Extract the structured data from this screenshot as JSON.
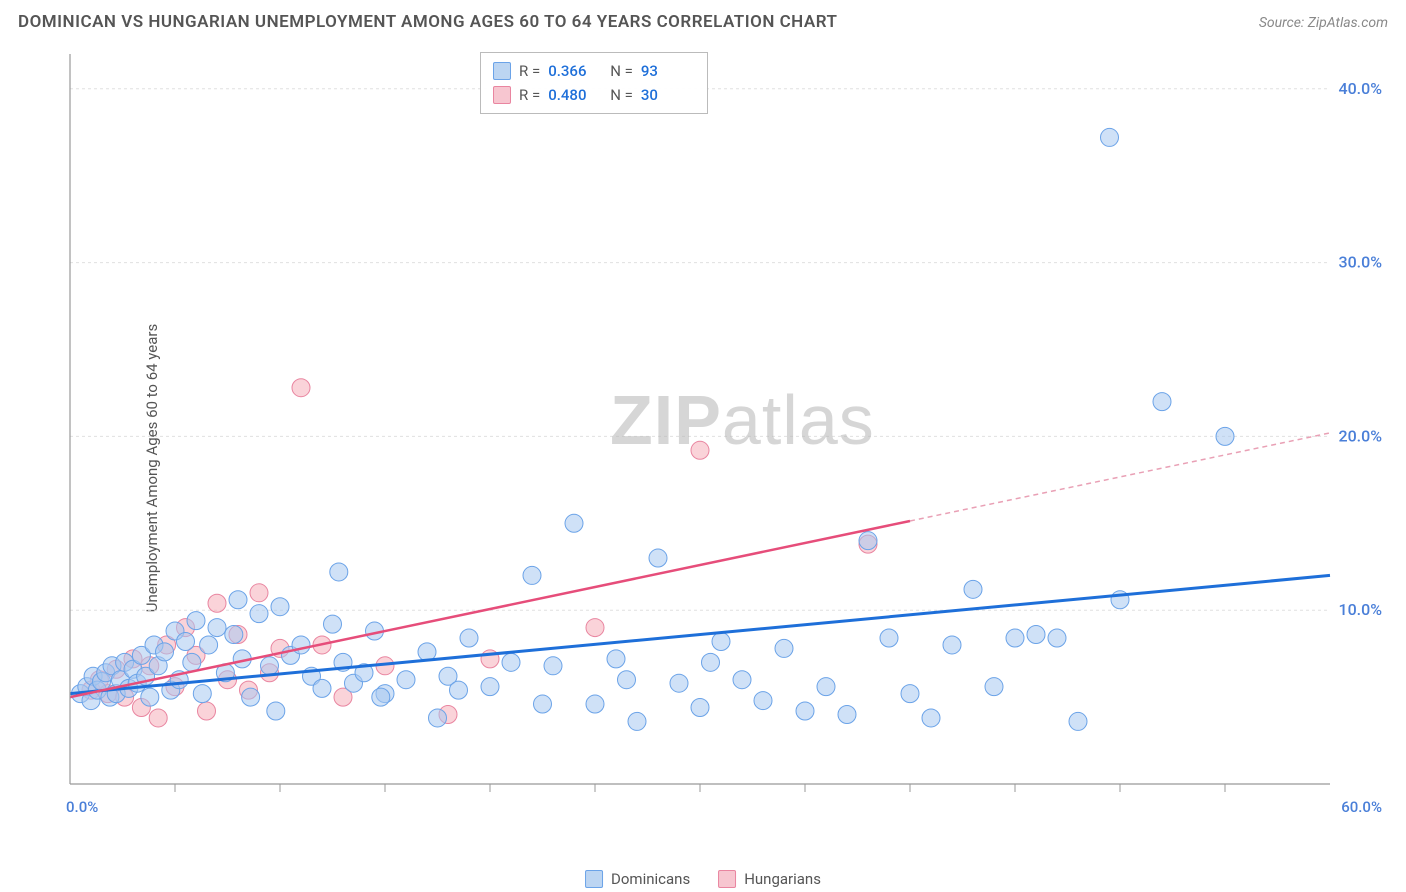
{
  "header": {
    "title": "DOMINICAN VS HUNGARIAN UNEMPLOYMENT AMONG AGES 60 TO 64 YEARS CORRELATION CHART",
    "source_label": "Source: ZipAtlas.com"
  },
  "ylabel": "Unemployment Among Ages 60 to 64 years",
  "watermark": {
    "part1": "ZIP",
    "part2": "atlas"
  },
  "chart": {
    "type": "scatter",
    "background_color": "#ffffff",
    "grid_color": "#e0e0e0",
    "axis_color": "#999999",
    "xlim": [
      0,
      60
    ],
    "ylim": [
      0,
      42
    ],
    "xticks": [
      0,
      60
    ],
    "xtick_labels": [
      "0.0%",
      "60.0%"
    ],
    "yticks": [
      10,
      20,
      30,
      40
    ],
    "ytick_labels": [
      "10.0%",
      "20.0%",
      "30.0%",
      "40.0%"
    ],
    "marker_radius": 9,
    "series": [
      {
        "name": "Dominicans",
        "fill": "#a8c8f0",
        "stroke": "#6ba3e8",
        "reg_color": "#1e6fd9",
        "reg_width": 3,
        "R": "0.366",
        "N": "93",
        "regression": {
          "x1": 0,
          "y1": 5.2,
          "x2": 60,
          "y2": 12.0,
          "x_solid_end": 60
        },
        "points": [
          [
            0.5,
            5.2
          ],
          [
            0.8,
            5.6
          ],
          [
            1.0,
            4.8
          ],
          [
            1.1,
            6.2
          ],
          [
            1.3,
            5.4
          ],
          [
            1.5,
            5.9
          ],
          [
            1.7,
            6.4
          ],
          [
            1.9,
            5.0
          ],
          [
            2.0,
            6.8
          ],
          [
            2.2,
            5.2
          ],
          [
            2.4,
            6.0
          ],
          [
            2.6,
            7.0
          ],
          [
            2.8,
            5.5
          ],
          [
            3.0,
            6.6
          ],
          [
            3.2,
            5.8
          ],
          [
            3.4,
            7.4
          ],
          [
            3.6,
            6.2
          ],
          [
            3.8,
            5.0
          ],
          [
            4.0,
            8.0
          ],
          [
            4.2,
            6.8
          ],
          [
            4.5,
            7.6
          ],
          [
            4.8,
            5.4
          ],
          [
            5.0,
            8.8
          ],
          [
            5.2,
            6.0
          ],
          [
            5.5,
            8.2
          ],
          [
            5.8,
            7.0
          ],
          [
            6.0,
            9.4
          ],
          [
            6.3,
            5.2
          ],
          [
            6.6,
            8.0
          ],
          [
            7.0,
            9.0
          ],
          [
            7.4,
            6.4
          ],
          [
            7.8,
            8.6
          ],
          [
            8.2,
            7.2
          ],
          [
            8.6,
            5.0
          ],
          [
            9.0,
            9.8
          ],
          [
            9.5,
            6.8
          ],
          [
            10.0,
            10.2
          ],
          [
            10.5,
            7.4
          ],
          [
            11.0,
            8.0
          ],
          [
            11.5,
            6.2
          ],
          [
            12.0,
            5.5
          ],
          [
            12.5,
            9.2
          ],
          [
            13.0,
            7.0
          ],
          [
            13.5,
            5.8
          ],
          [
            14.0,
            6.4
          ],
          [
            14.5,
            8.8
          ],
          [
            15.0,
            5.2
          ],
          [
            16.0,
            6.0
          ],
          [
            17.0,
            7.6
          ],
          [
            17.5,
            3.8
          ],
          [
            18.0,
            6.2
          ],
          [
            19.0,
            8.4
          ],
          [
            20.0,
            5.6
          ],
          [
            21.0,
            7.0
          ],
          [
            22.0,
            12.0
          ],
          [
            23.0,
            6.8
          ],
          [
            24.0,
            15.0
          ],
          [
            25.0,
            4.6
          ],
          [
            26.0,
            7.2
          ],
          [
            27.0,
            3.6
          ],
          [
            28.0,
            13.0
          ],
          [
            29.0,
            5.8
          ],
          [
            30.0,
            4.4
          ],
          [
            31.0,
            8.2
          ],
          [
            32.0,
            6.0
          ],
          [
            33.0,
            4.8
          ],
          [
            34.0,
            7.8
          ],
          [
            35.0,
            4.2
          ],
          [
            36.0,
            5.6
          ],
          [
            37.0,
            4.0
          ],
          [
            38.0,
            14.0
          ],
          [
            39.0,
            8.4
          ],
          [
            40.0,
            5.2
          ],
          [
            41.0,
            3.8
          ],
          [
            42.0,
            8.0
          ],
          [
            43.0,
            11.2
          ],
          [
            44.0,
            5.6
          ],
          [
            45.0,
            8.4
          ],
          [
            46.0,
            8.6
          ],
          [
            47.0,
            8.4
          ],
          [
            48.0,
            3.6
          ],
          [
            49.5,
            37.2
          ],
          [
            50.0,
            10.6
          ],
          [
            52.0,
            22.0
          ],
          [
            55.0,
            20.0
          ],
          [
            14.8,
            5.0
          ],
          [
            18.5,
            5.4
          ],
          [
            22.5,
            4.6
          ],
          [
            26.5,
            6.0
          ],
          [
            30.5,
            7.0
          ],
          [
            8.0,
            10.6
          ],
          [
            12.8,
            12.2
          ],
          [
            9.8,
            4.2
          ]
        ]
      },
      {
        "name": "Hungarians",
        "fill": "#f5aeb9",
        "stroke": "#e985a0",
        "reg_color": "#e64d7a",
        "reg_width": 2.5,
        "R": "0.480",
        "N": "30",
        "regression": {
          "x1": 0,
          "y1": 5.0,
          "x2": 60,
          "y2": 20.2,
          "x_solid_end": 40
        },
        "points": [
          [
            1.0,
            5.4
          ],
          [
            1.4,
            6.0
          ],
          [
            1.8,
            5.2
          ],
          [
            2.2,
            6.6
          ],
          [
            2.6,
            5.0
          ],
          [
            3.0,
            7.2
          ],
          [
            3.4,
            4.4
          ],
          [
            3.8,
            6.8
          ],
          [
            4.2,
            3.8
          ],
          [
            4.6,
            8.0
          ],
          [
            5.0,
            5.6
          ],
          [
            5.5,
            9.0
          ],
          [
            6.0,
            7.4
          ],
          [
            6.5,
            4.2
          ],
          [
            7.0,
            10.4
          ],
          [
            7.5,
            6.0
          ],
          [
            8.0,
            8.6
          ],
          [
            8.5,
            5.4
          ],
          [
            9.0,
            11.0
          ],
          [
            9.5,
            6.4
          ],
          [
            10.0,
            7.8
          ],
          [
            11.0,
            22.8
          ],
          [
            12.0,
            8.0
          ],
          [
            13.0,
            5.0
          ],
          [
            15.0,
            6.8
          ],
          [
            18.0,
            4.0
          ],
          [
            20.0,
            7.2
          ],
          [
            25.0,
            9.0
          ],
          [
            30.0,
            19.2
          ],
          [
            38.0,
            13.8
          ]
        ]
      }
    ]
  },
  "legend_top": {
    "R_label": "R  =",
    "N_label": "N  ="
  },
  "legend_bottom": {
    "items": [
      "Dominicans",
      "Hungarians"
    ]
  }
}
